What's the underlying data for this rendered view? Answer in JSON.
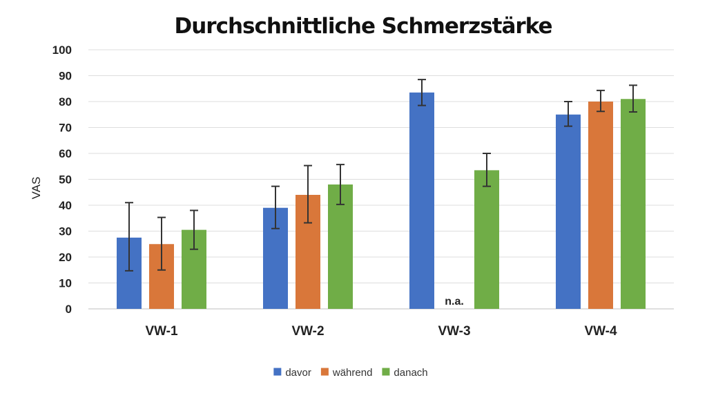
{
  "chart_data": {
    "type": "bar",
    "title": "Durchschnittliche Schmerzstärke",
    "ylabel": "VAS",
    "xlabel": "",
    "ylim": [
      0,
      100
    ],
    "yticks": [
      "0",
      "10",
      "20",
      "30",
      "40",
      "50",
      "60",
      "70",
      "80",
      "90",
      "100"
    ],
    "grid": true,
    "legend_position": "bottom",
    "categories": [
      "VW-1",
      "VW-2",
      "VW-3",
      "VW-4"
    ],
    "series": [
      {
        "name": "davor",
        "color": "#4472C4",
        "values": [
          27.5,
          39,
          83.5,
          75
        ],
        "error": [
          [
            14.7,
            41
          ],
          [
            31,
            47.3
          ],
          [
            78.5,
            88.5
          ],
          [
            70.5,
            80
          ]
        ]
      },
      {
        "name": "während",
        "color": "#D9773A",
        "values": [
          25,
          44,
          null,
          80
        ],
        "error": [
          [
            15,
            35.3
          ],
          [
            33.2,
            55.3
          ],
          null,
          [
            76.2,
            84.3
          ]
        ]
      },
      {
        "name": "danach",
        "color": "#70AD47",
        "values": [
          30.5,
          48,
          53.5,
          81
        ],
        "error": [
          [
            23,
            38
          ],
          [
            40.3,
            55.7
          ],
          [
            47.3,
            60
          ],
          [
            76,
            86.3
          ]
        ]
      }
    ],
    "annotations": [
      {
        "category": "VW-3",
        "series": "während",
        "text": "n.a."
      }
    ]
  }
}
